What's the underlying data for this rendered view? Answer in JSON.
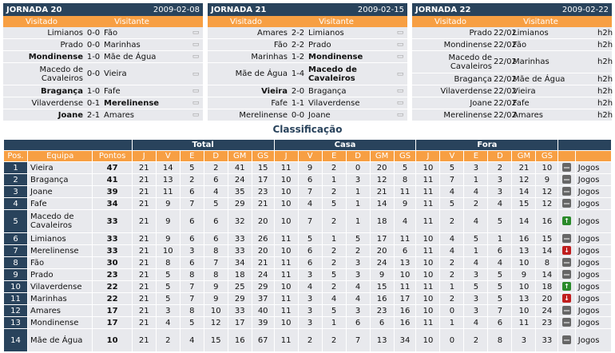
{
  "jornadas": [
    {
      "title": "JORNADA 20",
      "date": "2009-02-08",
      "col_home": "Visitado",
      "col_away": "Visitante",
      "matches": [
        {
          "home": "Limianos",
          "score": "0-0",
          "away": "Fão",
          "home_bold": false,
          "away_bold": false,
          "tall": false
        },
        {
          "home": "Prado",
          "score": "0-0",
          "away": "Marinhas",
          "home_bold": false,
          "away_bold": false,
          "tall": false
        },
        {
          "home": "Mondinense",
          "score": "1-0",
          "away": "Mãe de Água",
          "home_bold": true,
          "away_bold": false,
          "tall": false
        },
        {
          "home": "Macedo de Cavaleiros",
          "score": "0-0",
          "away": "Vieira",
          "home_bold": false,
          "away_bold": false,
          "tall": true
        },
        {
          "home": "Bragança",
          "score": "1-0",
          "away": "Fafe",
          "home_bold": true,
          "away_bold": false,
          "tall": false
        },
        {
          "home": "Vilaverdense",
          "score": "0-1",
          "away": "Merelinense",
          "home_bold": false,
          "away_bold": true,
          "tall": false
        },
        {
          "home": "Joane",
          "score": "2-1",
          "away": "Amares",
          "home_bold": true,
          "away_bold": false,
          "tall": false
        }
      ]
    },
    {
      "title": "JORNADA 21",
      "date": "2009-02-15",
      "col_home": "Visitado",
      "col_away": "Visitante",
      "matches": [
        {
          "home": "Amares",
          "score": "2-2",
          "away": "Limianos",
          "home_bold": false,
          "away_bold": false,
          "tall": false
        },
        {
          "home": "Fão",
          "score": "2-2",
          "away": "Prado",
          "home_bold": false,
          "away_bold": false,
          "tall": false
        },
        {
          "home": "Marinhas",
          "score": "1-2",
          "away": "Mondinense",
          "home_bold": false,
          "away_bold": true,
          "tall": false
        },
        {
          "home": "Mãe de Água",
          "score": "1-4",
          "away": "Macedo de Cavaleiros",
          "home_bold": false,
          "away_bold": true,
          "tall": true
        },
        {
          "home": "Vieira",
          "score": "2-0",
          "away": "Bragança",
          "home_bold": true,
          "away_bold": false,
          "tall": false
        },
        {
          "home": "Fafe",
          "score": "1-1",
          "away": "Vilaverdense",
          "home_bold": false,
          "away_bold": false,
          "tall": false
        },
        {
          "home": "Merelinense",
          "score": "0-0",
          "away": "Joane",
          "home_bold": false,
          "away_bold": false,
          "tall": false
        }
      ]
    },
    {
      "title": "JORNADA 22",
      "date": "2009-02-22",
      "col_home": "Visitado",
      "col_away": "Visitante",
      "matches": [
        {
          "home": "Prado",
          "score": "22/02",
          "away": "Limianos",
          "extra": "h2h",
          "tall": false
        },
        {
          "home": "Mondinense",
          "score": "22/02",
          "away": "Fão",
          "extra": "h2h",
          "tall": false
        },
        {
          "home": "Macedo de Cavaleiros",
          "score": "22/02",
          "away": "Marinhas",
          "extra": "h2h",
          "tall": true
        },
        {
          "home": "Bragança",
          "score": "22/02",
          "away": "Mãe de Água",
          "extra": "h2h",
          "tall": false
        },
        {
          "home": "Vilaverdense",
          "score": "22/02",
          "away": "Vieira",
          "extra": "h2h",
          "tall": false
        },
        {
          "home": "Joane",
          "score": "22/02",
          "away": "Fafe",
          "extra": "h2h",
          "tall": false
        },
        {
          "home": "Merelinense",
          "score": "22/02",
          "away": "Amares",
          "extra": "h2h",
          "tall": false
        }
      ]
    }
  ],
  "classificacao_title": "Classificação",
  "groups": {
    "total": "Total",
    "casa": "Casa",
    "fora": "Fora"
  },
  "columns": [
    "Pos.",
    "Equipa",
    "Pontos",
    "J",
    "V",
    "E",
    "D",
    "GM",
    "GS",
    "J",
    "V",
    "E",
    "D",
    "GM",
    "GS",
    "J",
    "V",
    "E",
    "D",
    "GM",
    "GS"
  ],
  "jogos_label": "Jogos",
  "standings": [
    {
      "pos": "1",
      "team": "Vieira",
      "pts": "47",
      "total": [
        "21",
        "14",
        "5",
        "2",
        "41",
        "15"
      ],
      "casa": [
        "11",
        "9",
        "2",
        "0",
        "20",
        "5"
      ],
      "fora": [
        "10",
        "5",
        "3",
        "2",
        "21",
        "10"
      ],
      "trend": "same",
      "tall": false
    },
    {
      "pos": "2",
      "team": "Bragança",
      "pts": "41",
      "total": [
        "21",
        "13",
        "2",
        "6",
        "24",
        "17"
      ],
      "casa": [
        "10",
        "6",
        "1",
        "3",
        "12",
        "8"
      ],
      "fora": [
        "11",
        "7",
        "1",
        "3",
        "12",
        "9"
      ],
      "trend": "same",
      "tall": false
    },
    {
      "pos": "3",
      "team": "Joane",
      "pts": "39",
      "total": [
        "21",
        "11",
        "6",
        "4",
        "35",
        "23"
      ],
      "casa": [
        "10",
        "7",
        "2",
        "1",
        "21",
        "11"
      ],
      "fora": [
        "11",
        "4",
        "4",
        "3",
        "14",
        "12"
      ],
      "trend": "same",
      "tall": false
    },
    {
      "pos": "4",
      "team": "Fafe",
      "pts": "34",
      "total": [
        "21",
        "9",
        "7",
        "5",
        "29",
        "21"
      ],
      "casa": [
        "10",
        "4",
        "5",
        "1",
        "14",
        "9"
      ],
      "fora": [
        "11",
        "5",
        "2",
        "4",
        "15",
        "12"
      ],
      "trend": "same",
      "tall": false
    },
    {
      "pos": "5",
      "team": "Macedo de Cavaleiros",
      "pts": "33",
      "total": [
        "21",
        "9",
        "6",
        "6",
        "32",
        "20"
      ],
      "casa": [
        "10",
        "7",
        "2",
        "1",
        "18",
        "4"
      ],
      "fora": [
        "11",
        "2",
        "4",
        "5",
        "14",
        "16"
      ],
      "trend": "up",
      "tall": true
    },
    {
      "pos": "6",
      "team": "Limianos",
      "pts": "33",
      "total": [
        "21",
        "9",
        "6",
        "6",
        "33",
        "26"
      ],
      "casa": [
        "11",
        "5",
        "1",
        "5",
        "17",
        "11"
      ],
      "fora": [
        "10",
        "4",
        "5",
        "1",
        "16",
        "15"
      ],
      "trend": "same",
      "tall": false
    },
    {
      "pos": "7",
      "team": "Merelinense",
      "pts": "33",
      "total": [
        "21",
        "10",
        "3",
        "8",
        "33",
        "20"
      ],
      "casa": [
        "10",
        "6",
        "2",
        "2",
        "20",
        "6"
      ],
      "fora": [
        "11",
        "4",
        "1",
        "6",
        "13",
        "14"
      ],
      "trend": "down",
      "tall": false
    },
    {
      "pos": "8",
      "team": "Fão",
      "pts": "30",
      "total": [
        "21",
        "8",
        "6",
        "7",
        "34",
        "21"
      ],
      "casa": [
        "11",
        "6",
        "2",
        "3",
        "24",
        "13"
      ],
      "fora": [
        "10",
        "2",
        "4",
        "4",
        "10",
        "8"
      ],
      "trend": "same",
      "tall": false
    },
    {
      "pos": "9",
      "team": "Prado",
      "pts": "23",
      "total": [
        "21",
        "5",
        "8",
        "8",
        "18",
        "24"
      ],
      "casa": [
        "11",
        "3",
        "5",
        "3",
        "9",
        "10"
      ],
      "fora": [
        "10",
        "2",
        "3",
        "5",
        "9",
        "14"
      ],
      "trend": "same",
      "tall": false
    },
    {
      "pos": "10",
      "team": "Vilaverdense",
      "pts": "22",
      "total": [
        "21",
        "5",
        "7",
        "9",
        "25",
        "29"
      ],
      "casa": [
        "10",
        "4",
        "2",
        "4",
        "15",
        "11"
      ],
      "fora": [
        "11",
        "1",
        "5",
        "5",
        "10",
        "18"
      ],
      "trend": "up",
      "tall": false
    },
    {
      "pos": "11",
      "team": "Marinhas",
      "pts": "22",
      "total": [
        "21",
        "5",
        "7",
        "9",
        "29",
        "37"
      ],
      "casa": [
        "11",
        "3",
        "4",
        "4",
        "16",
        "17"
      ],
      "fora": [
        "10",
        "2",
        "3",
        "5",
        "13",
        "20"
      ],
      "trend": "down",
      "tall": false
    },
    {
      "pos": "12",
      "team": "Amares",
      "pts": "17",
      "total": [
        "21",
        "3",
        "8",
        "10",
        "33",
        "40"
      ],
      "casa": [
        "11",
        "3",
        "5",
        "3",
        "23",
        "16"
      ],
      "fora": [
        "10",
        "0",
        "3",
        "7",
        "10",
        "24"
      ],
      "trend": "same",
      "tall": false
    },
    {
      "pos": "13",
      "team": "Mondinense",
      "pts": "17",
      "total": [
        "21",
        "4",
        "5",
        "12",
        "17",
        "39"
      ],
      "casa": [
        "10",
        "3",
        "1",
        "6",
        "6",
        "16"
      ],
      "fora": [
        "11",
        "1",
        "4",
        "6",
        "11",
        "23"
      ],
      "trend": "same",
      "tall": false
    },
    {
      "pos": "14",
      "team": "Mãe de Água",
      "pts": "10",
      "total": [
        "21",
        "2",
        "4",
        "15",
        "16",
        "67"
      ],
      "casa": [
        "11",
        "2",
        "2",
        "7",
        "13",
        "34"
      ],
      "fora": [
        "10",
        "0",
        "2",
        "8",
        "3",
        "33"
      ],
      "trend": "same",
      "tall": true
    }
  ]
}
